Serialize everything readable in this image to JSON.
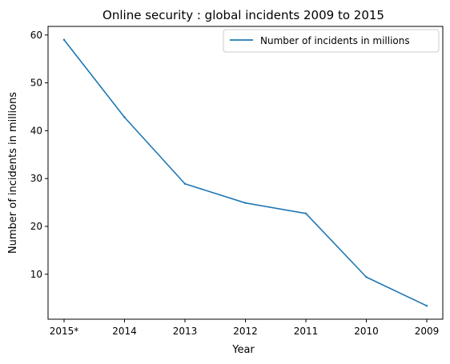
{
  "chart_data": {
    "type": "line",
    "title": "Online security : global incidents 2009 to 2015",
    "xlabel": "Year",
    "ylabel": "Number of incidents in millions",
    "categories": [
      "2015*",
      "2014",
      "2013",
      "2012",
      "2011",
      "2010",
      "2009"
    ],
    "series": [
      {
        "name": "Number of incidents in millions",
        "values": [
          59.0,
          42.8,
          28.9,
          24.9,
          22.7,
          9.4,
          3.4
        ],
        "color": "#1f77b4"
      }
    ],
    "ylim": [
      0.6,
      61.8
    ],
    "yticks": [
      10,
      20,
      30,
      40,
      50,
      60
    ],
    "grid": false,
    "legend_position": "top-right"
  }
}
